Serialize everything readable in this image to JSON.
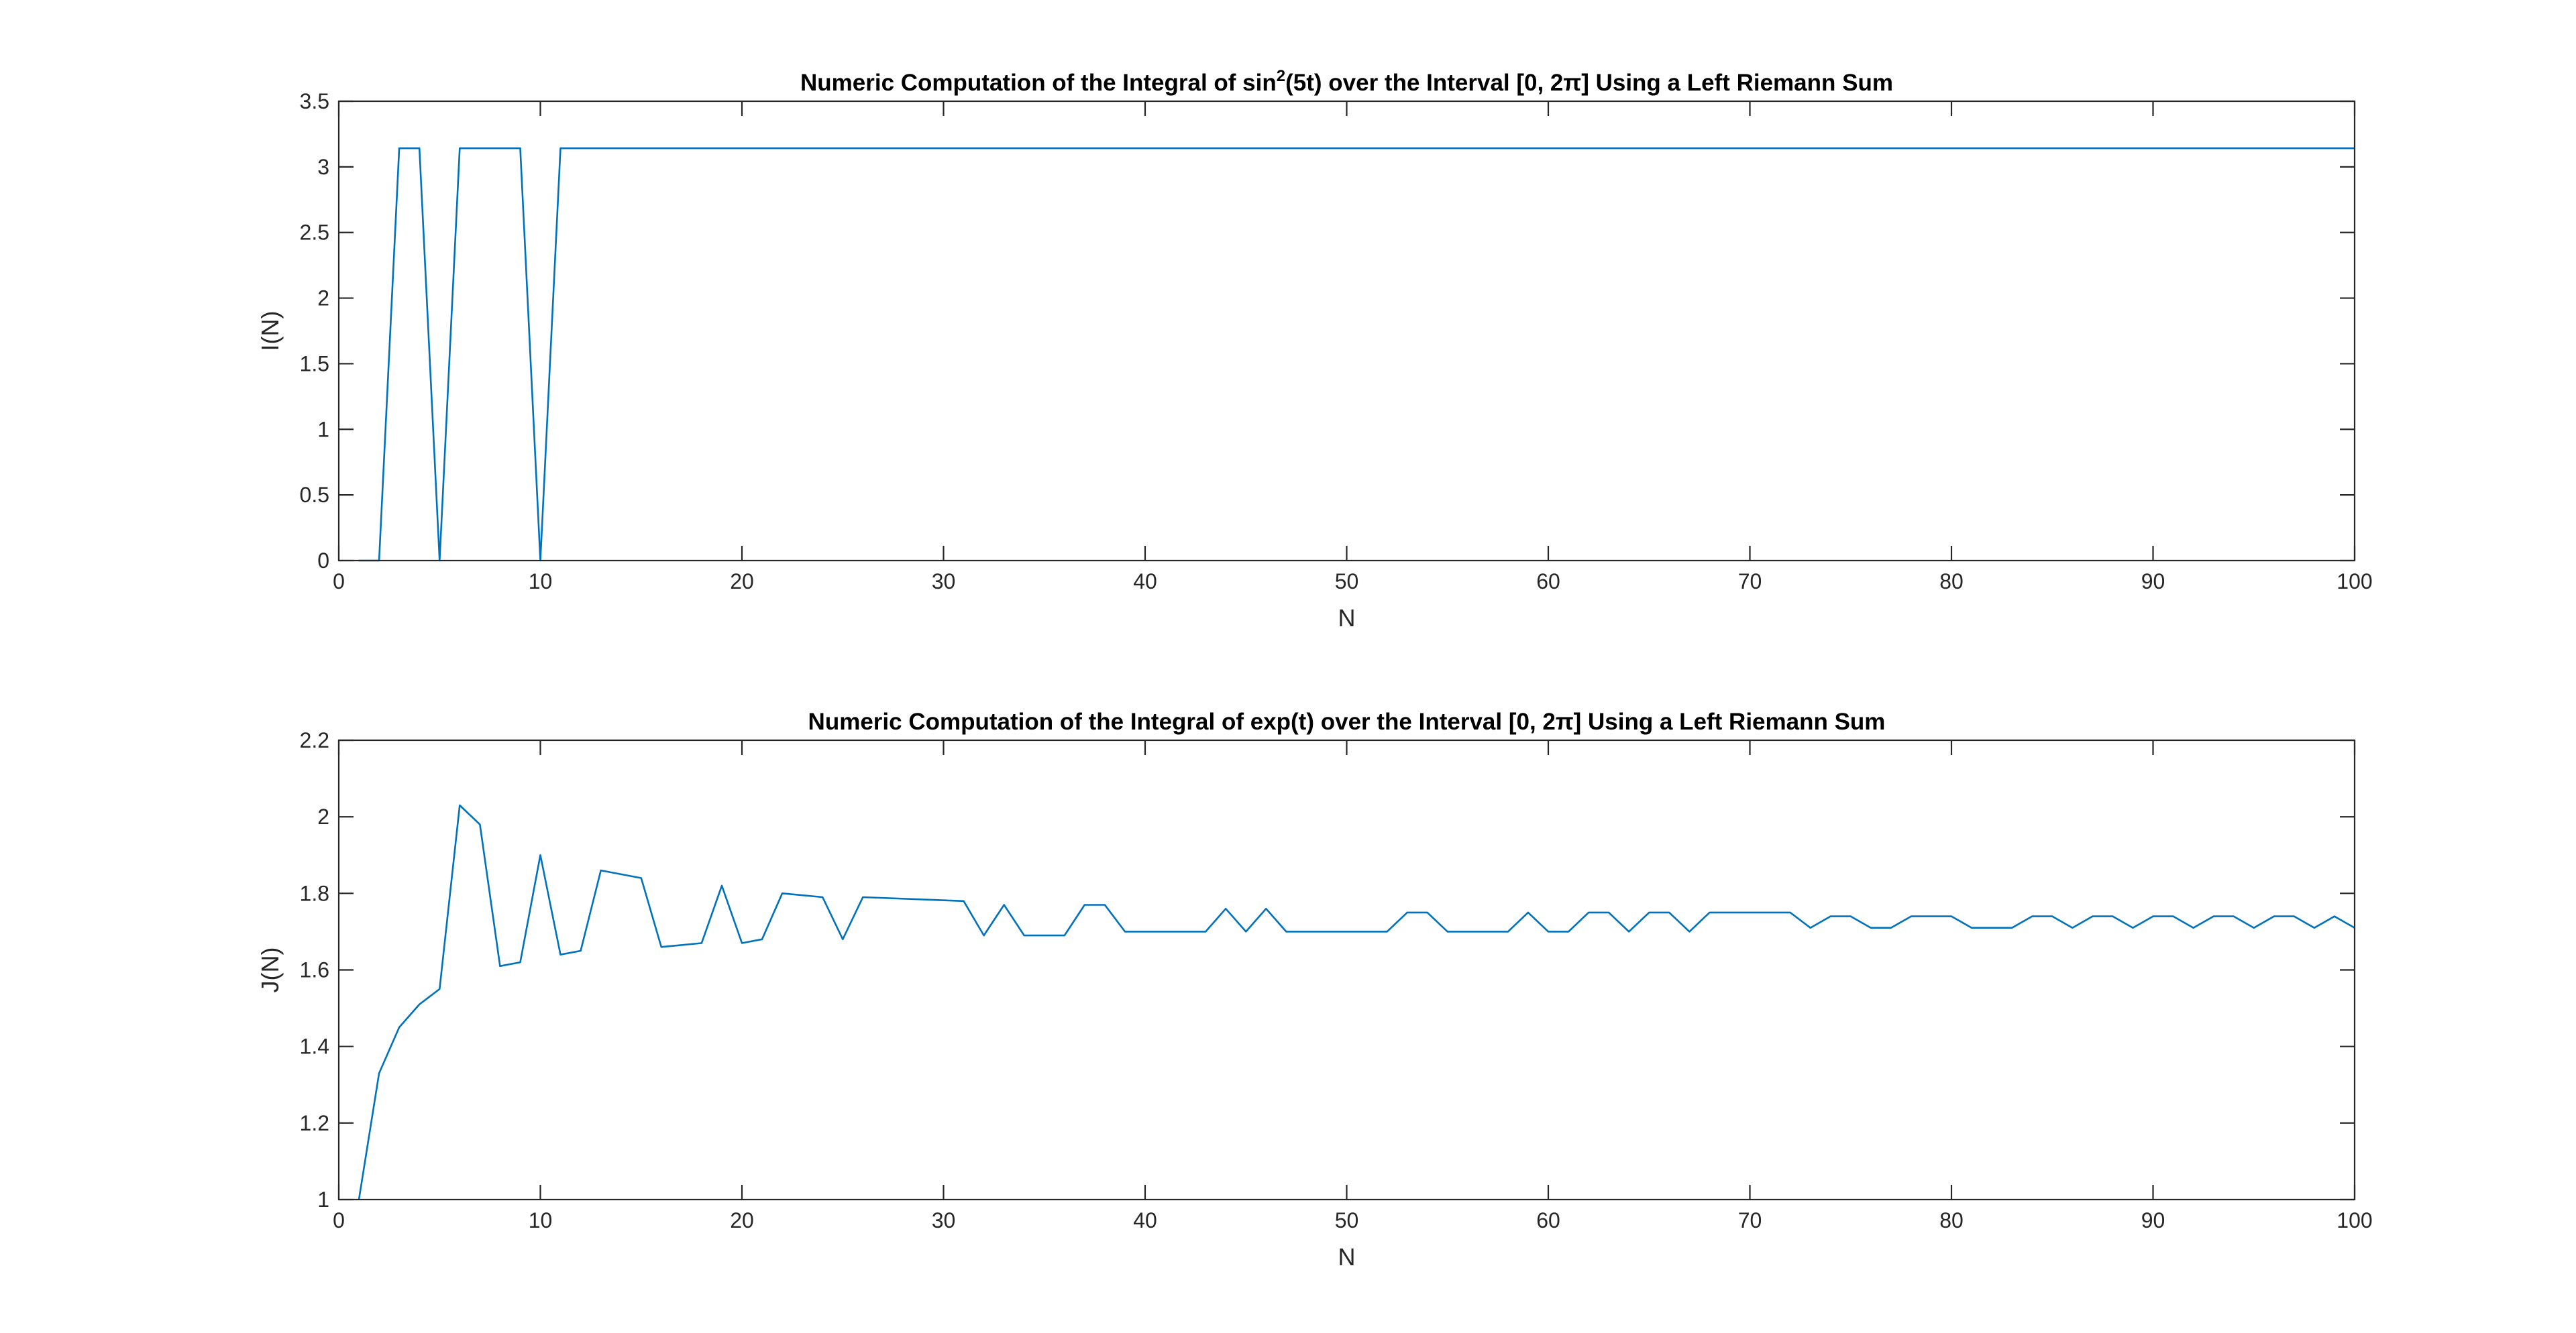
{
  "chart_data": [
    {
      "type": "line",
      "title_parts": [
        "Numeric Computation of the Integral of sin",
        "2",
        "(5t) over the Interval [0, 2π] Using a Left Riemann Sum"
      ],
      "xlabel": "N",
      "ylabel": "I(N)",
      "xlim": [
        0,
        100
      ],
      "ylim": [
        0,
        3.5
      ],
      "xticks": [
        "0",
        "10",
        "20",
        "30",
        "40",
        "50",
        "60",
        "70",
        "80",
        "90",
        "100"
      ],
      "yticks": [
        "0",
        "0.5",
        "1",
        "1.5",
        "2",
        "2.5",
        "3",
        "3.5"
      ],
      "grid": false,
      "color": "#0072BD",
      "x": [
        1,
        2,
        3,
        4,
        5,
        6,
        7,
        8,
        9,
        10,
        11,
        100
      ],
      "y": [
        0,
        0,
        3.1416,
        3.1416,
        0,
        3.1416,
        3.1416,
        3.1416,
        3.1416,
        0,
        3.1416,
        3.1416
      ]
    },
    {
      "type": "line",
      "title_parts": [
        "Numeric Computation of the Integral of exp(t) over the Interval [0, 2π] Using a Left Riemann Sum"
      ],
      "xlabel": "N",
      "ylabel": "J(N)",
      "xlim": [
        0,
        100
      ],
      "ylim": [
        1,
        2.2
      ],
      "xticks": [
        "0",
        "10",
        "20",
        "30",
        "40",
        "50",
        "60",
        "70",
        "80",
        "90",
        "100"
      ],
      "yticks": [
        "1",
        "1.2",
        "1.4",
        "1.6",
        "1.8",
        "2",
        "2.2"
      ],
      "grid": false,
      "color": "#0072BD",
      "x": [
        1,
        2,
        3,
        4,
        5,
        6,
        7,
        8,
        9,
        10,
        11,
        12,
        13,
        15,
        16,
        18,
        19,
        20,
        21,
        22,
        24,
        25,
        26,
        31,
        32,
        33,
        34,
        36,
        37,
        38,
        39,
        43,
        44,
        45,
        46,
        47,
        52,
        53,
        54,
        55,
        58,
        59,
        60,
        61,
        62,
        63,
        64,
        65,
        66,
        67,
        68,
        72,
        73,
        74,
        75,
        76,
        77,
        78,
        80,
        81,
        83,
        84,
        85,
        86,
        87,
        88,
        89,
        90,
        91,
        92,
        93,
        94,
        95,
        96,
        97,
        98,
        99,
        100
      ],
      "y": [
        1.0,
        1.33,
        1.45,
        1.51,
        1.55,
        2.03,
        1.98,
        1.61,
        1.62,
        1.9,
        1.64,
        1.65,
        1.86,
        1.84,
        1.66,
        1.67,
        1.82,
        1.67,
        1.68,
        1.8,
        1.79,
        1.68,
        1.79,
        1.78,
        1.69,
        1.77,
        1.69,
        1.69,
        1.77,
        1.77,
        1.7,
        1.7,
        1.76,
        1.7,
        1.76,
        1.7,
        1.7,
        1.75,
        1.75,
        1.7,
        1.7,
        1.75,
        1.7,
        1.7,
        1.75,
        1.75,
        1.7,
        1.75,
        1.75,
        1.7,
        1.75,
        1.75,
        1.71,
        1.74,
        1.74,
        1.71,
        1.71,
        1.74,
        1.74,
        1.71,
        1.71,
        1.74,
        1.74,
        1.71,
        1.74,
        1.74,
        1.71,
        1.74,
        1.74,
        1.71,
        1.74,
        1.74,
        1.71,
        1.74,
        1.74,
        1.71,
        1.74,
        1.71
      ]
    }
  ]
}
